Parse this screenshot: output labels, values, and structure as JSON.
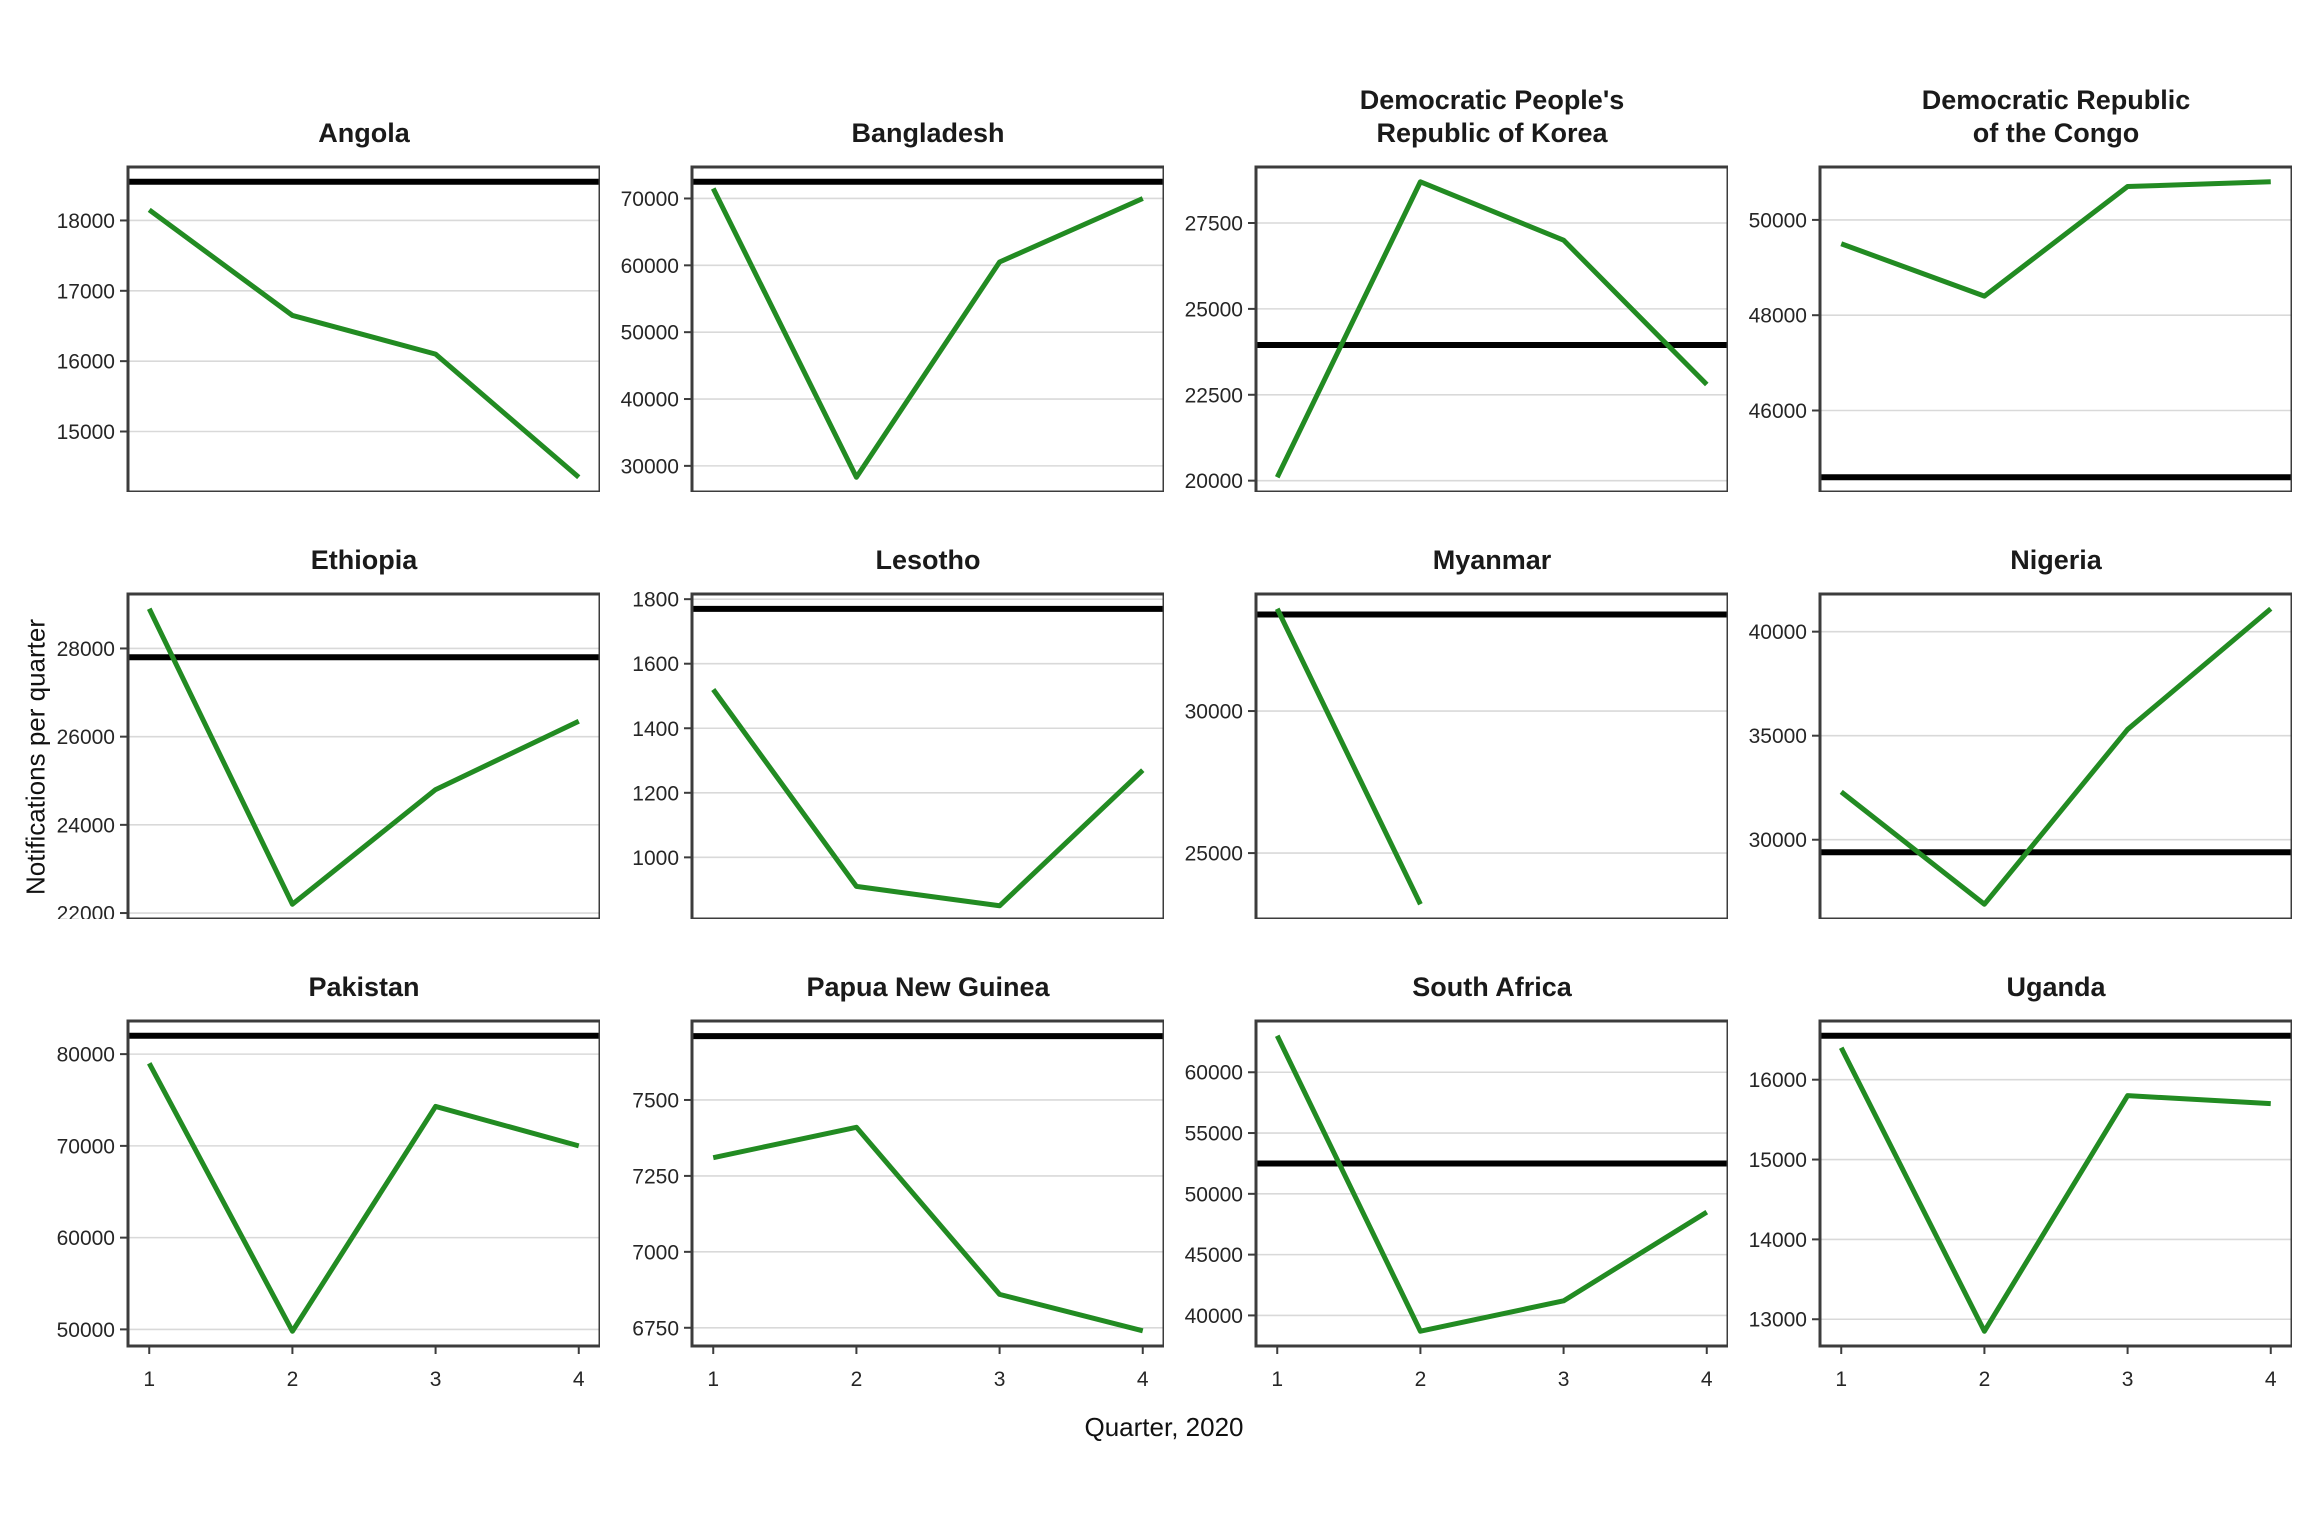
{
  "figure": {
    "x_axis_label": "Quarter, 2020",
    "y_axis_label": "Notifications per quarter",
    "colors": {
      "line": "#228B22",
      "reference": "#000000",
      "grid": "#d9d9d9",
      "border": "#3c3c3c",
      "tick": "#3c3c3c"
    }
  },
  "chart_data": {
    "type": "line",
    "xlabel": "Quarter, 2020",
    "ylabel": "Notifications per quarter",
    "x": [
      1,
      2,
      3,
      4
    ],
    "x_tick_labels": [
      "1",
      "2",
      "3",
      "4"
    ],
    "legend": "none",
    "grid": "horizontal-major-only",
    "panels": [
      {
        "country": "Angola",
        "slug": "angola",
        "title_lines": [
          "Angola"
        ],
        "values": [
          18150,
          16650,
          16100,
          14350
        ],
        "reference_line": 18550,
        "y_ticks": [
          15000,
          16000,
          17000,
          18000
        ],
        "y_lim": [
          14140,
          18760
        ]
      },
      {
        "country": "Bangladesh",
        "slug": "bangladesh",
        "title_lines": [
          "Bangladesh"
        ],
        "values": [
          71500,
          28300,
          60500,
          70000
        ],
        "reference_line": 72500,
        "y_ticks": [
          30000,
          40000,
          50000,
          60000,
          70000
        ],
        "y_lim": [
          26090,
          74710
        ]
      },
      {
        "country": "Democratic People's Republic of Korea",
        "slug": "dpr-korea",
        "title_lines": [
          "Democratic People's",
          "Republic of Korea"
        ],
        "values": [
          20100,
          28700,
          27000,
          22800
        ],
        "reference_line": 23950,
        "y_ticks": [
          20000,
          22500,
          25000,
          27500
        ],
        "y_lim": [
          19670,
          29130
        ]
      },
      {
        "country": "Democratic Republic of the Congo",
        "slug": "dr-congo",
        "title_lines": [
          "Democratic Republic",
          "of the Congo"
        ],
        "values": [
          49500,
          48400,
          50700,
          50800
        ],
        "reference_line": 44600,
        "y_ticks": [
          46000,
          48000,
          50000
        ],
        "y_lim": [
          44290,
          51110
        ]
      },
      {
        "country": "Ethiopia",
        "slug": "ethiopia",
        "title_lines": [
          "Ethiopia"
        ],
        "values": [
          28900,
          22200,
          24800,
          26350
        ],
        "reference_line": 27800,
        "y_ticks": [
          22000,
          24000,
          26000,
          28000
        ],
        "y_lim": [
          21865,
          29235
        ]
      },
      {
        "country": "Lesotho",
        "slug": "lesotho",
        "title_lines": [
          "Lesotho"
        ],
        "values": [
          1520,
          910,
          850,
          1270
        ],
        "reference_line": 1770,
        "y_ticks": [
          1000,
          1200,
          1400,
          1600,
          1800
        ],
        "y_lim": [
          809,
          1816
        ]
      },
      {
        "country": "Myanmar",
        "slug": "myanmar",
        "title_lines": [
          "Myanmar"
        ],
        "values": [
          33600,
          23200,
          null,
          null
        ],
        "reference_line": 33400,
        "y_ticks": [
          25000,
          30000
        ],
        "y_lim": [
          22680,
          34120
        ]
      },
      {
        "country": "Nigeria",
        "slug": "nigeria",
        "title_lines": [
          "Nigeria"
        ],
        "values": [
          32300,
          26900,
          35300,
          41100
        ],
        "reference_line": 29400,
        "y_ticks": [
          30000,
          35000,
          40000
        ],
        "y_lim": [
          26190,
          41810
        ]
      },
      {
        "country": "Pakistan",
        "slug": "pakistan",
        "title_lines": [
          "Pakistan"
        ],
        "values": [
          79000,
          49800,
          74300,
          70000
        ],
        "reference_line": 82000,
        "y_ticks": [
          50000,
          60000,
          70000,
          80000
        ],
        "y_lim": [
          48190,
          83610
        ]
      },
      {
        "country": "Papua New Guinea",
        "slug": "papua-new-guinea",
        "title_lines": [
          "Papua New Guinea"
        ],
        "values": [
          7310,
          7410,
          6860,
          6740
        ],
        "reference_line": 7710,
        "y_ticks": [
          6750,
          7000,
          7250,
          7500
        ],
        "y_lim": [
          6690,
          7760
        ]
      },
      {
        "country": "South Africa",
        "slug": "south-africa",
        "title_lines": [
          "South Africa"
        ],
        "values": [
          63000,
          38700,
          41200,
          48500
        ],
        "reference_line": 52500,
        "y_ticks": [
          40000,
          45000,
          50000,
          55000,
          60000
        ],
        "y_lim": [
          37485,
          64215
        ]
      },
      {
        "country": "Uganda",
        "slug": "uganda",
        "title_lines": [
          "Uganda"
        ],
        "values": [
          16400,
          12850,
          15800,
          15700
        ],
        "reference_line": 16550,
        "y_ticks": [
          13000,
          14000,
          15000,
          16000
        ],
        "y_lim": [
          12665,
          16735
        ]
      }
    ]
  }
}
